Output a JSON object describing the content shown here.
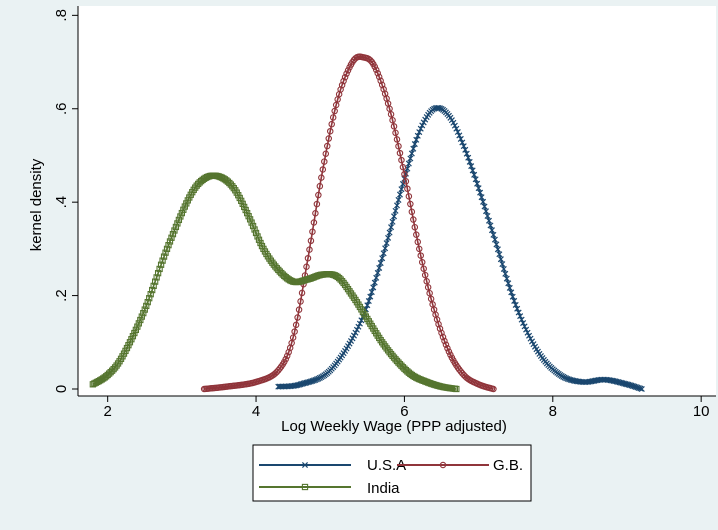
{
  "chart_data": {
    "type": "line",
    "title": "",
    "xlabel": "Log Weekly Wage (PPP adjusted)",
    "ylabel": "kernel density",
    "xlim": [
      1.6,
      10.2
    ],
    "ylim": [
      -0.015,
      0.82
    ],
    "xticks": [
      2,
      4,
      6,
      8,
      10
    ],
    "xtick_labels": [
      "2",
      "4",
      "6",
      "8",
      "10"
    ],
    "yticks": [
      0,
      0.2,
      0.4,
      0.6,
      0.8
    ],
    "ytick_labels": [
      "0",
      ".2",
      ".4",
      ".6",
      ".8"
    ],
    "grid": false,
    "legend_position": "bottom",
    "series": [
      {
        "name": "U.S.A",
        "color": "#1a476f",
        "marker": "x",
        "x": [
          4.3,
          4.6,
          5.0,
          5.4,
          5.7,
          6.0,
          6.2,
          6.4,
          6.6,
          6.8,
          7.0,
          7.2,
          7.5,
          7.8,
          8.1,
          8.4,
          8.7,
          9.0,
          9.2
        ],
        "y": [
          0.005,
          0.01,
          0.04,
          0.14,
          0.28,
          0.45,
          0.55,
          0.6,
          0.585,
          0.52,
          0.43,
          0.33,
          0.18,
          0.08,
          0.03,
          0.015,
          0.02,
          0.01,
          0.0
        ]
      },
      {
        "name": "G.B.",
        "color": "#90353b",
        "marker": "o",
        "x": [
          3.3,
          3.6,
          4.0,
          4.3,
          4.5,
          4.7,
          4.9,
          5.1,
          5.3,
          5.45,
          5.6,
          5.8,
          6.0,
          6.2,
          6.4,
          6.6,
          6.8,
          7.0,
          7.2
        ],
        "y": [
          0.0,
          0.005,
          0.015,
          0.04,
          0.11,
          0.28,
          0.47,
          0.62,
          0.7,
          0.71,
          0.69,
          0.6,
          0.46,
          0.3,
          0.17,
          0.08,
          0.03,
          0.01,
          0.0
        ]
      },
      {
        "name": "India",
        "color": "#55752f",
        "marker": "square",
        "x": [
          1.8,
          2.0,
          2.2,
          2.5,
          2.8,
          3.1,
          3.3,
          3.5,
          3.7,
          3.9,
          4.1,
          4.3,
          4.5,
          4.7,
          4.9,
          5.1,
          5.3,
          5.5,
          5.7,
          5.9,
          6.1,
          6.3,
          6.5,
          6.7
        ],
        "y": [
          0.01,
          0.03,
          0.07,
          0.17,
          0.3,
          0.41,
          0.45,
          0.455,
          0.43,
          0.37,
          0.3,
          0.255,
          0.23,
          0.235,
          0.245,
          0.24,
          0.2,
          0.15,
          0.1,
          0.06,
          0.03,
          0.015,
          0.005,
          0.0
        ]
      }
    ]
  }
}
